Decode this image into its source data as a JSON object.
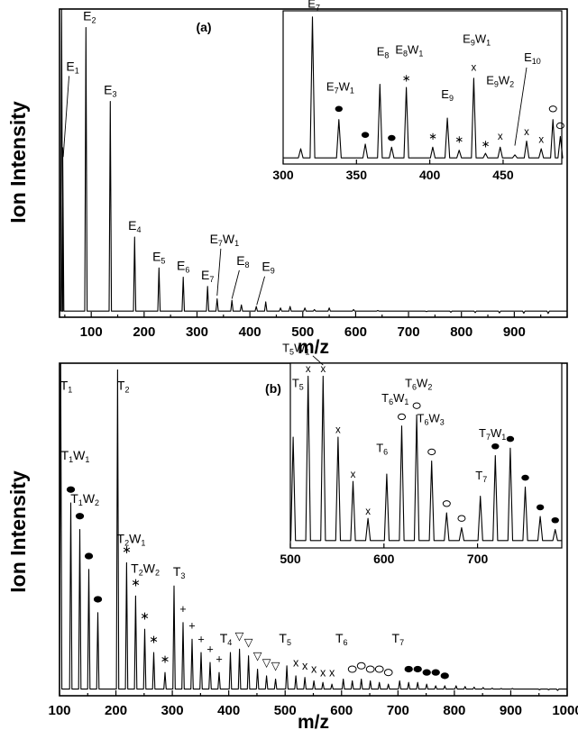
{
  "chart_data": [
    {
      "panel": "a",
      "type": "line",
      "panel_label": "(a)",
      "xlabel": "m/z",
      "ylabel": "Ion Intensity",
      "xlim": [
        40,
        1000
      ],
      "ylim": [
        0,
        1.0
      ],
      "xticks": [
        100,
        200,
        300,
        400,
        500,
        600,
        700,
        800,
        900
      ],
      "show_y_ticks": false,
      "baseline": 0.02,
      "peaks": [
        {
          "x": 44,
          "y": 1.0,
          "label": ""
        },
        {
          "x": 46,
          "y": 0.55,
          "label": ""
        },
        {
          "x": 90,
          "y": 0.94,
          "label": "E2"
        },
        {
          "x": 136,
          "y": 0.7,
          "label": "E3"
        },
        {
          "x": 182,
          "y": 0.26,
          "label": "E4"
        },
        {
          "x": 228,
          "y": 0.16,
          "label": "E5"
        },
        {
          "x": 274,
          "y": 0.13,
          "label": "E6"
        },
        {
          "x": 320,
          "y": 0.1,
          "label": "E7"
        },
        {
          "x": 338,
          "y": 0.06,
          "label": ""
        },
        {
          "x": 366,
          "y": 0.055,
          "label": ""
        },
        {
          "x": 384,
          "y": 0.04,
          "label": ""
        },
        {
          "x": 412,
          "y": 0.035,
          "label": ""
        },
        {
          "x": 430,
          "y": 0.05,
          "label": ""
        },
        {
          "x": 458,
          "y": 0.03,
          "label": ""
        },
        {
          "x": 476,
          "y": 0.035,
          "label": ""
        },
        {
          "x": 504,
          "y": 0.03,
          "label": ""
        },
        {
          "x": 522,
          "y": 0.025,
          "label": ""
        },
        {
          "x": 550,
          "y": 0.03,
          "label": ""
        },
        {
          "x": 596,
          "y": 0.025,
          "label": ""
        },
        {
          "x": 642,
          "y": 0.022,
          "label": ""
        },
        {
          "x": 688,
          "y": 0.02,
          "label": ""
        },
        {
          "x": 734,
          "y": 0.018,
          "label": ""
        },
        {
          "x": 780,
          "y": 0.016,
          "label": ""
        },
        {
          "x": 826,
          "y": 0.015,
          "label": ""
        },
        {
          "x": 872,
          "y": 0.014,
          "label": ""
        },
        {
          "x": 918,
          "y": 0.013,
          "label": ""
        },
        {
          "x": 964,
          "y": 0.012,
          "label": ""
        }
      ],
      "annotations": [
        {
          "text": "E1",
          "x": 58,
          "y": 0.8,
          "arrow_x": 47,
          "arrow_y": 0.52
        },
        {
          "text": "E7W1",
          "x": 345,
          "y": 0.24,
          "arrow_x": 338,
          "arrow_y": 0.07
        },
        {
          "text": "E8",
          "x": 380,
          "y": 0.17,
          "arrow_x": 366,
          "arrow_y": 0.06
        },
        {
          "text": "E9",
          "x": 428,
          "y": 0.15,
          "arrow_x": 413,
          "arrow_y": 0.04
        }
      ],
      "inset": {
        "xlim": [
          300,
          490
        ],
        "ylim": [
          0,
          1.0
        ],
        "xticks": [
          300,
          350,
          400,
          450
        ],
        "baseline": 0.04,
        "peaks": [
          {
            "x": 312,
            "y": 0.1
          },
          {
            "x": 320,
            "y": 0.96
          },
          {
            "x": 338,
            "y": 0.29
          },
          {
            "x": 356,
            "y": 0.13
          },
          {
            "x": 366,
            "y": 0.52
          },
          {
            "x": 374,
            "y": 0.11
          },
          {
            "x": 384,
            "y": 0.5
          },
          {
            "x": 402,
            "y": 0.11
          },
          {
            "x": 412,
            "y": 0.3
          },
          {
            "x": 420,
            "y": 0.09
          },
          {
            "x": 430,
            "y": 0.56
          },
          {
            "x": 438,
            "y": 0.07
          },
          {
            "x": 448,
            "y": 0.11
          },
          {
            "x": 458,
            "y": 0.06
          },
          {
            "x": 466,
            "y": 0.15
          },
          {
            "x": 476,
            "y": 0.1
          },
          {
            "x": 484,
            "y": 0.29
          },
          {
            "x": 489,
            "y": 0.18
          }
        ],
        "labels": [
          {
            "text": "E7",
            "x": 321,
            "y": 1.02
          },
          {
            "text": "E7W1",
            "x": 339,
            "y": 0.48
          },
          {
            "text": "E8",
            "x": 368,
            "y": 0.71
          },
          {
            "text": "E8W1",
            "x": 386,
            "y": 0.72
          },
          {
            "text": "E9",
            "x": 412,
            "y": 0.43
          },
          {
            "text": "E9W1",
            "x": 432,
            "y": 0.79
          },
          {
            "text": "E9W2",
            "x": 448,
            "y": 0.52
          },
          {
            "text": "E10",
            "x": 470,
            "y": 0.67
          }
        ],
        "markers": [
          {
            "symbol": "●",
            "x": 338,
            "y": 0.36
          },
          {
            "symbol": "●",
            "x": 356,
            "y": 0.19
          },
          {
            "symbol": "●",
            "x": 374,
            "y": 0.17
          },
          {
            "symbol": "∗",
            "x": 384,
            "y": 0.56
          },
          {
            "symbol": "∗",
            "x": 402,
            "y": 0.18
          },
          {
            "symbol": "∗",
            "x": 420,
            "y": 0.16
          },
          {
            "symbol": "x",
            "x": 430,
            "y": 0.63
          },
          {
            "symbol": "∗",
            "x": 438,
            "y": 0.13
          },
          {
            "symbol": "x",
            "x": 448,
            "y": 0.18
          },
          {
            "symbol": "x",
            "x": 466,
            "y": 0.21
          },
          {
            "symbol": "x",
            "x": 476,
            "y": 0.16
          },
          {
            "symbol": "○",
            "x": 484,
            "y": 0.36
          },
          {
            "symbol": "○",
            "x": 489,
            "y": 0.25
          }
        ]
      }
    },
    {
      "panel": "b",
      "type": "line",
      "panel_label": "(b)",
      "xlabel": "m/z",
      "ylabel": "Ion Intensity",
      "xlim": [
        100,
        1000
      ],
      "ylim": [
        0,
        1.0
      ],
      "xticks": [
        100,
        200,
        300,
        400,
        500,
        600,
        700,
        800,
        900,
        1000
      ],
      "show_y_ticks": false,
      "baseline": 0.02,
      "peaks": [
        {
          "x": 102,
          "y": 1.0
        },
        {
          "x": 120,
          "y": 0.58
        },
        {
          "x": 136,
          "y": 0.5
        },
        {
          "x": 152,
          "y": 0.38
        },
        {
          "x": 168,
          "y": 0.25
        },
        {
          "x": 203,
          "y": 0.98
        },
        {
          "x": 219,
          "y": 0.4
        },
        {
          "x": 235,
          "y": 0.3
        },
        {
          "x": 251,
          "y": 0.2
        },
        {
          "x": 267,
          "y": 0.13
        },
        {
          "x": 287,
          "y": 0.07
        },
        {
          "x": 303,
          "y": 0.33
        },
        {
          "x": 319,
          "y": 0.22
        },
        {
          "x": 335,
          "y": 0.17
        },
        {
          "x": 351,
          "y": 0.13
        },
        {
          "x": 367,
          "y": 0.1
        },
        {
          "x": 383,
          "y": 0.07
        },
        {
          "x": 403,
          "y": 0.13
        },
        {
          "x": 419,
          "y": 0.14
        },
        {
          "x": 435,
          "y": 0.12
        },
        {
          "x": 451,
          "y": 0.08
        },
        {
          "x": 467,
          "y": 0.06
        },
        {
          "x": 483,
          "y": 0.05
        },
        {
          "x": 503,
          "y": 0.09
        },
        {
          "x": 519,
          "y": 0.06
        },
        {
          "x": 535,
          "y": 0.055
        },
        {
          "x": 551,
          "y": 0.045
        },
        {
          "x": 567,
          "y": 0.04
        },
        {
          "x": 583,
          "y": 0.035
        },
        {
          "x": 603,
          "y": 0.05
        },
        {
          "x": 619,
          "y": 0.045
        },
        {
          "x": 635,
          "y": 0.05
        },
        {
          "x": 651,
          "y": 0.045
        },
        {
          "x": 667,
          "y": 0.04
        },
        {
          "x": 683,
          "y": 0.035
        },
        {
          "x": 703,
          "y": 0.045
        },
        {
          "x": 719,
          "y": 0.04
        },
        {
          "x": 735,
          "y": 0.04
        },
        {
          "x": 751,
          "y": 0.035
        },
        {
          "x": 767,
          "y": 0.03
        },
        {
          "x": 783,
          "y": 0.03
        },
        {
          "x": 803,
          "y": 0.03
        },
        {
          "x": 819,
          "y": 0.028
        },
        {
          "x": 835,
          "y": 0.026
        },
        {
          "x": 851,
          "y": 0.025
        },
        {
          "x": 867,
          "y": 0.023
        },
        {
          "x": 883,
          "y": 0.022
        },
        {
          "x": 903,
          "y": 0.022
        },
        {
          "x": 919,
          "y": 0.02
        },
        {
          "x": 935,
          "y": 0.02
        },
        {
          "x": 951,
          "y": 0.018
        },
        {
          "x": 967,
          "y": 0.018
        },
        {
          "x": 983,
          "y": 0.016
        }
      ],
      "labels": [
        {
          "text": "T1",
          "x": 112,
          "y": 0.92
        },
        {
          "text": "T2",
          "x": 213,
          "y": 0.92
        },
        {
          "text": "T1W1",
          "x": 128,
          "y": 0.71
        },
        {
          "text": "T1W2",
          "x": 145,
          "y": 0.58
        },
        {
          "text": "T2W1",
          "x": 227,
          "y": 0.46
        },
        {
          "text": "T2W2",
          "x": 252,
          "y": 0.37
        },
        {
          "text": "T3",
          "x": 312,
          "y": 0.36
        },
        {
          "text": "T4",
          "x": 395,
          "y": 0.16
        },
        {
          "text": "T5",
          "x": 500,
          "y": 0.16
        },
        {
          "text": "T6",
          "x": 600,
          "y": 0.16
        },
        {
          "text": "T7",
          "x": 700,
          "y": 0.16
        }
      ],
      "markers": [
        {
          "symbol": "●",
          "x": 120,
          "y": 0.62
        },
        {
          "symbol": "●",
          "x": 136,
          "y": 0.54
        },
        {
          "symbol": "●",
          "x": 152,
          "y": 0.42
        },
        {
          "symbol": "●",
          "x": 168,
          "y": 0.29
        },
        {
          "symbol": "∗",
          "x": 219,
          "y": 0.44
        },
        {
          "symbol": "∗",
          "x": 235,
          "y": 0.34
        },
        {
          "symbol": "∗",
          "x": 251,
          "y": 0.24
        },
        {
          "symbol": "∗",
          "x": 267,
          "y": 0.17
        },
        {
          "symbol": "∗",
          "x": 287,
          "y": 0.11
        },
        {
          "symbol": "+",
          "x": 319,
          "y": 0.26
        },
        {
          "symbol": "+",
          "x": 335,
          "y": 0.21
        },
        {
          "symbol": "+",
          "x": 351,
          "y": 0.17
        },
        {
          "symbol": "+",
          "x": 367,
          "y": 0.14
        },
        {
          "symbol": "+",
          "x": 383,
          "y": 0.11
        },
        {
          "symbol": "▽",
          "x": 419,
          "y": 0.18
        },
        {
          "symbol": "▽",
          "x": 435,
          "y": 0.16
        },
        {
          "symbol": "▽",
          "x": 451,
          "y": 0.12
        },
        {
          "symbol": "▽",
          "x": 467,
          "y": 0.1
        },
        {
          "symbol": "▽",
          "x": 483,
          "y": 0.09
        },
        {
          "symbol": "x",
          "x": 519,
          "y": 0.1
        },
        {
          "symbol": "x",
          "x": 535,
          "y": 0.09
        },
        {
          "symbol": "x",
          "x": 551,
          "y": 0.08
        },
        {
          "symbol": "x",
          "x": 567,
          "y": 0.07
        },
        {
          "symbol": "x",
          "x": 583,
          "y": 0.07
        },
        {
          "symbol": "○",
          "x": 619,
          "y": 0.08
        },
        {
          "symbol": "○",
          "x": 635,
          "y": 0.09
        },
        {
          "symbol": "○",
          "x": 651,
          "y": 0.08
        },
        {
          "symbol": "○",
          "x": 667,
          "y": 0.08
        },
        {
          "symbol": "○",
          "x": 683,
          "y": 0.07
        },
        {
          "symbol": "●",
          "x": 719,
          "y": 0.08
        },
        {
          "symbol": "●",
          "x": 735,
          "y": 0.08
        },
        {
          "symbol": "●",
          "x": 751,
          "y": 0.07
        },
        {
          "symbol": "●",
          "x": 767,
          "y": 0.07
        },
        {
          "symbol": "●",
          "x": 783,
          "y": 0.06
        }
      ],
      "inset": {
        "xlim": [
          500,
          790
        ],
        "ylim": [
          0,
          1.0
        ],
        "xticks": [
          500,
          600,
          700
        ],
        "baseline": 0.04,
        "peaks": [
          {
            "x": 503,
            "y": 0.6
          },
          {
            "x": 519,
            "y": 0.93
          },
          {
            "x": 535,
            "y": 0.93
          },
          {
            "x": 551,
            "y": 0.6
          },
          {
            "x": 567,
            "y": 0.36
          },
          {
            "x": 583,
            "y": 0.16
          },
          {
            "x": 603,
            "y": 0.4
          },
          {
            "x": 619,
            "y": 0.66
          },
          {
            "x": 635,
            "y": 0.72
          },
          {
            "x": 651,
            "y": 0.47
          },
          {
            "x": 667,
            "y": 0.19
          },
          {
            "x": 683,
            "y": 0.11
          },
          {
            "x": 703,
            "y": 0.28
          },
          {
            "x": 719,
            "y": 0.5
          },
          {
            "x": 735,
            "y": 0.54
          },
          {
            "x": 751,
            "y": 0.33
          },
          {
            "x": 767,
            "y": 0.17
          },
          {
            "x": 783,
            "y": 0.1
          }
        ],
        "labels": [
          {
            "text": "T5W1",
            "x": 506,
            "y": 1.06
          },
          {
            "text": "T5",
            "x": 508,
            "y": 0.87
          },
          {
            "text": "T6W1",
            "x": 612,
            "y": 0.79
          },
          {
            "text": "T6W2",
            "x": 637,
            "y": 0.87
          },
          {
            "text": "T6W3",
            "x": 650,
            "y": 0.68
          },
          {
            "text": "T6",
            "x": 598,
            "y": 0.52
          },
          {
            "text": "T7W1",
            "x": 716,
            "y": 0.6
          },
          {
            "text": "T7",
            "x": 704,
            "y": 0.37
          }
        ],
        "markers": [
          {
            "symbol": "x",
            "x": 519,
            "y": 0.97
          },
          {
            "symbol": "x",
            "x": 535,
            "y": 0.97
          },
          {
            "symbol": "x",
            "x": 551,
            "y": 0.64
          },
          {
            "symbol": "x",
            "x": 567,
            "y": 0.4
          },
          {
            "symbol": "x",
            "x": 583,
            "y": 0.2
          },
          {
            "symbol": "○",
            "x": 619,
            "y": 0.71
          },
          {
            "symbol": "○",
            "x": 635,
            "y": 0.77
          },
          {
            "symbol": "○",
            "x": 651,
            "y": 0.52
          },
          {
            "symbol": "○",
            "x": 667,
            "y": 0.24
          },
          {
            "symbol": "○",
            "x": 683,
            "y": 0.16
          },
          {
            "symbol": "●",
            "x": 719,
            "y": 0.55
          },
          {
            "symbol": "●",
            "x": 735,
            "y": 0.59
          },
          {
            "symbol": "●",
            "x": 751,
            "y": 0.38
          },
          {
            "symbol": "●",
            "x": 767,
            "y": 0.22
          },
          {
            "symbol": "●",
            "x": 783,
            "y": 0.15
          }
        ]
      }
    }
  ]
}
